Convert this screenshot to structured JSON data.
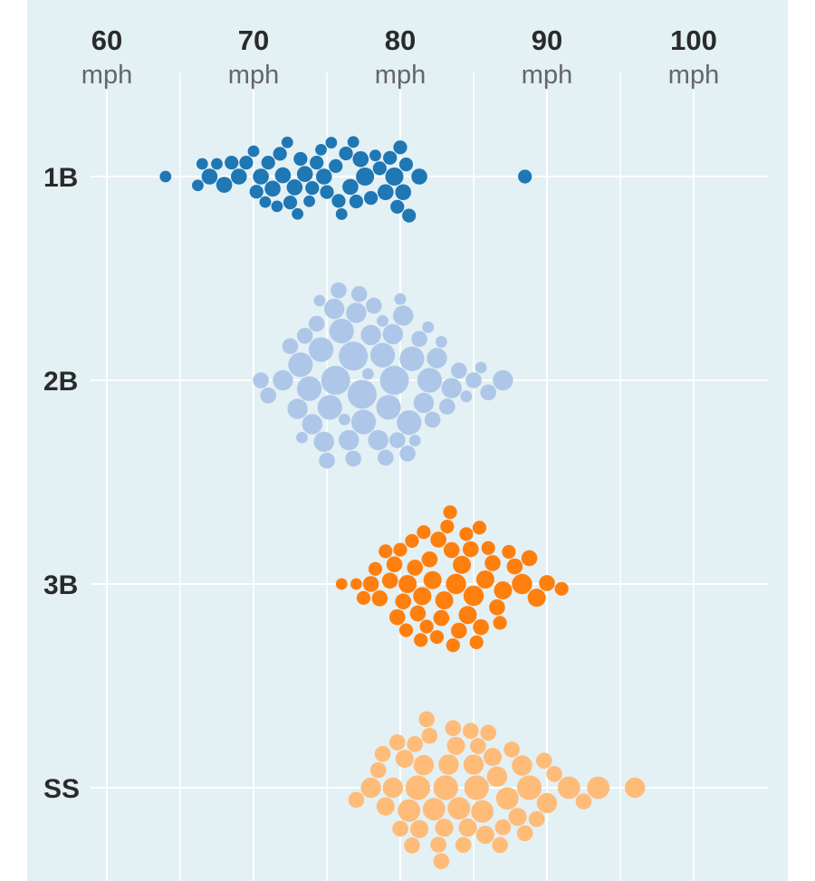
{
  "chart_data": {
    "type": "scatter",
    "subtype": "beeswarm",
    "title": "",
    "xlabel": "mph",
    "xlim": [
      60,
      100
    ],
    "xticks": [
      {
        "value": 60,
        "label": "60",
        "unit": "mph"
      },
      {
        "value": 70,
        "label": "70",
        "unit": "mph"
      },
      {
        "value": 80,
        "label": "80",
        "unit": "mph"
      },
      {
        "value": 90,
        "label": "90",
        "unit": "mph"
      },
      {
        "value": 100,
        "label": "100",
        "unit": "mph"
      }
    ],
    "minor_gridlines": [
      65,
      75,
      85,
      95
    ],
    "grid": true,
    "series": [
      {
        "name": "1B",
        "color": "#1f77b4",
        "points": [
          [
            64,
            1
          ],
          [
            66.2,
            1
          ],
          [
            66.5,
            1
          ],
          [
            67,
            2
          ],
          [
            67.5,
            1
          ],
          [
            68,
            2
          ],
          [
            68.5,
            1.5
          ],
          [
            69,
            2
          ],
          [
            69.5,
            1.5
          ],
          [
            70,
            1
          ],
          [
            70.2,
            1.5
          ],
          [
            70.5,
            2
          ],
          [
            70.8,
            1
          ],
          [
            71,
            1.5
          ],
          [
            71.3,
            2
          ],
          [
            71.6,
            1
          ],
          [
            71.8,
            1.5
          ],
          [
            72,
            2
          ],
          [
            72.3,
            1
          ],
          [
            72.5,
            1.5
          ],
          [
            72.8,
            2
          ],
          [
            73,
            1
          ],
          [
            73.2,
            1.5
          ],
          [
            73.5,
            2
          ],
          [
            73.8,
            1
          ],
          [
            74,
            1.5
          ],
          [
            74.3,
            1.5
          ],
          [
            74.6,
            1
          ],
          [
            74.8,
            2
          ],
          [
            75,
            1.5
          ],
          [
            75.3,
            1
          ],
          [
            75.6,
            1.5
          ],
          [
            75.8,
            1.5
          ],
          [
            76,
            1
          ],
          [
            76.3,
            1.5
          ],
          [
            76.6,
            2
          ],
          [
            76.8,
            1
          ],
          [
            77,
            1.5
          ],
          [
            77.3,
            2
          ],
          [
            77.6,
            2.5
          ],
          [
            78,
            1.5
          ],
          [
            78.3,
            1
          ],
          [
            78.6,
            1.5
          ],
          [
            79,
            2
          ],
          [
            79.3,
            1.5
          ],
          [
            79.6,
            2.5
          ],
          [
            79.8,
            1.5
          ],
          [
            80,
            1.5
          ],
          [
            80.2,
            2
          ],
          [
            80.4,
            1.5
          ],
          [
            80.6,
            1.5
          ],
          [
            81.3,
            2
          ],
          [
            88.5,
            1.5
          ]
        ]
      },
      {
        "name": "2B",
        "color": "#aec7e8",
        "points": [
          [
            70.5,
            2
          ],
          [
            71,
            2
          ],
          [
            72,
            3
          ],
          [
            72.5,
            2
          ],
          [
            73,
            3
          ],
          [
            73.3,
            1
          ],
          [
            73.5,
            2
          ],
          [
            73.8,
            4
          ],
          [
            74,
            3
          ],
          [
            74.3,
            2
          ],
          [
            74.5,
            1
          ],
          [
            74.8,
            3
          ],
          [
            75,
            2
          ],
          [
            75.2,
            4
          ],
          [
            75.5,
            3
          ],
          [
            75.8,
            2
          ],
          [
            76,
            4
          ],
          [
            76.2,
            1
          ],
          [
            76.5,
            3
          ],
          [
            76.8,
            2
          ],
          [
            77,
            3
          ],
          [
            77.2,
            2
          ],
          [
            77.5,
            4
          ],
          [
            77.8,
            1
          ],
          [
            78,
            3
          ],
          [
            78.2,
            2
          ],
          [
            78.5,
            3
          ],
          [
            78.8,
            1
          ],
          [
            79,
            2
          ],
          [
            79.2,
            4
          ],
          [
            79.5,
            3
          ],
          [
            79.8,
            2
          ],
          [
            80,
            1
          ],
          [
            80.2,
            3
          ],
          [
            80.5,
            2
          ],
          [
            80.8,
            4
          ],
          [
            81,
            1
          ],
          [
            81.3,
            2
          ],
          [
            81.6,
            3
          ],
          [
            81.9,
            1
          ],
          [
            82.2,
            2
          ],
          [
            82.5,
            3
          ],
          [
            82.8,
            1
          ],
          [
            83.2,
            2
          ],
          [
            83.5,
            3
          ],
          [
            84,
            2
          ],
          [
            84.5,
            1
          ],
          [
            85,
            2
          ],
          [
            85.5,
            1
          ],
          [
            86,
            2
          ],
          [
            87,
            3
          ],
          [
            75.6,
            5
          ],
          [
            77.4,
            5
          ],
          [
            79.6,
            5
          ],
          [
            76.8,
            5
          ],
          [
            78.8,
            4
          ],
          [
            73.2,
            4
          ],
          [
            74.6,
            4
          ],
          [
            80.6,
            4
          ],
          [
            82,
            4
          ]
        ]
      },
      {
        "name": "3B",
        "color": "#ff7f0e",
        "points": [
          [
            76,
            1
          ],
          [
            77,
            1
          ],
          [
            77.5,
            1.5
          ],
          [
            78,
            2
          ],
          [
            78.3,
            1.5
          ],
          [
            78.6,
            2
          ],
          [
            79,
            1.5
          ],
          [
            79.3,
            2
          ],
          [
            79.6,
            2
          ],
          [
            80,
            1.5
          ],
          [
            80.2,
            2
          ],
          [
            80.5,
            2.5
          ],
          [
            80.8,
            1.5
          ],
          [
            81,
            2
          ],
          [
            81.2,
            2
          ],
          [
            81.5,
            2.5
          ],
          [
            81.8,
            1.5
          ],
          [
            82,
            2
          ],
          [
            82.2,
            2.5
          ],
          [
            82.5,
            1.5
          ],
          [
            82.8,
            2
          ],
          [
            83,
            2.5
          ],
          [
            83.2,
            1.5
          ],
          [
            83.5,
            2
          ],
          [
            83.8,
            3
          ],
          [
            84,
            2
          ],
          [
            84.2,
            2.5
          ],
          [
            84.5,
            1.5
          ],
          [
            84.8,
            2
          ],
          [
            85,
            3
          ],
          [
            85.2,
            1.5
          ],
          [
            85.5,
            2
          ],
          [
            85.8,
            2.5
          ],
          [
            86,
            1.5
          ],
          [
            86.3,
            2
          ],
          [
            86.6,
            2
          ],
          [
            87,
            2.5
          ],
          [
            87.4,
            1.5
          ],
          [
            87.8,
            2
          ],
          [
            88.3,
            3
          ],
          [
            88.8,
            2
          ],
          [
            89.3,
            2.5
          ],
          [
            90,
            2
          ],
          [
            91,
            1.5
          ],
          [
            83.6,
            1.5
          ],
          [
            81.6,
            1.5
          ],
          [
            79.8,
            2
          ],
          [
            82.6,
            2
          ],
          [
            84.6,
            2.5
          ],
          [
            86.8,
            1.5
          ],
          [
            80.4,
            1.5
          ],
          [
            85.4,
            1.5
          ],
          [
            83.4,
            1.5
          ],
          [
            81.4,
            1.5
          ]
        ]
      },
      {
        "name": "SS",
        "color": "#ffbb78",
        "points": [
          [
            77,
            2
          ],
          [
            78,
            3
          ],
          [
            78.5,
            2
          ],
          [
            79,
            2.5
          ],
          [
            79.5,
            3
          ],
          [
            80,
            2
          ],
          [
            80.3,
            2.5
          ],
          [
            80.6,
            3.5
          ],
          [
            81,
            2
          ],
          [
            81.3,
            2.5
          ],
          [
            81.6,
            3
          ],
          [
            82,
            2
          ],
          [
            82.3,
            3.5
          ],
          [
            82.6,
            2
          ],
          [
            83,
            2.5
          ],
          [
            83.3,
            3
          ],
          [
            83.6,
            2
          ],
          [
            84,
            3.5
          ],
          [
            84.3,
            2
          ],
          [
            84.6,
            2.5
          ],
          [
            85,
            3
          ],
          [
            85.3,
            2
          ],
          [
            85.6,
            3.5
          ],
          [
            86,
            2
          ],
          [
            86.3,
            2.5
          ],
          [
            86.6,
            3
          ],
          [
            87,
            2
          ],
          [
            87.3,
            3.5
          ],
          [
            87.6,
            2
          ],
          [
            88,
            2.5
          ],
          [
            88.3,
            3
          ],
          [
            88.8,
            4
          ],
          [
            89.3,
            2
          ],
          [
            90,
            3
          ],
          [
            90.5,
            2
          ],
          [
            91.5,
            3.5
          ],
          [
            92.5,
            2
          ],
          [
            93.5,
            3.5
          ],
          [
            96,
            3
          ],
          [
            79.8,
            2
          ],
          [
            81.8,
            2
          ],
          [
            83.8,
            2.5
          ],
          [
            85.8,
            2.5
          ],
          [
            84.8,
            2
          ],
          [
            82.8,
            2
          ],
          [
            86.8,
            2
          ],
          [
            80.8,
            2
          ],
          [
            88.5,
            2
          ],
          [
            89.8,
            2
          ],
          [
            78.8,
            2
          ],
          [
            83.1,
            4
          ],
          [
            85.2,
            4
          ],
          [
            81.2,
            4
          ]
        ]
      }
    ]
  }
}
